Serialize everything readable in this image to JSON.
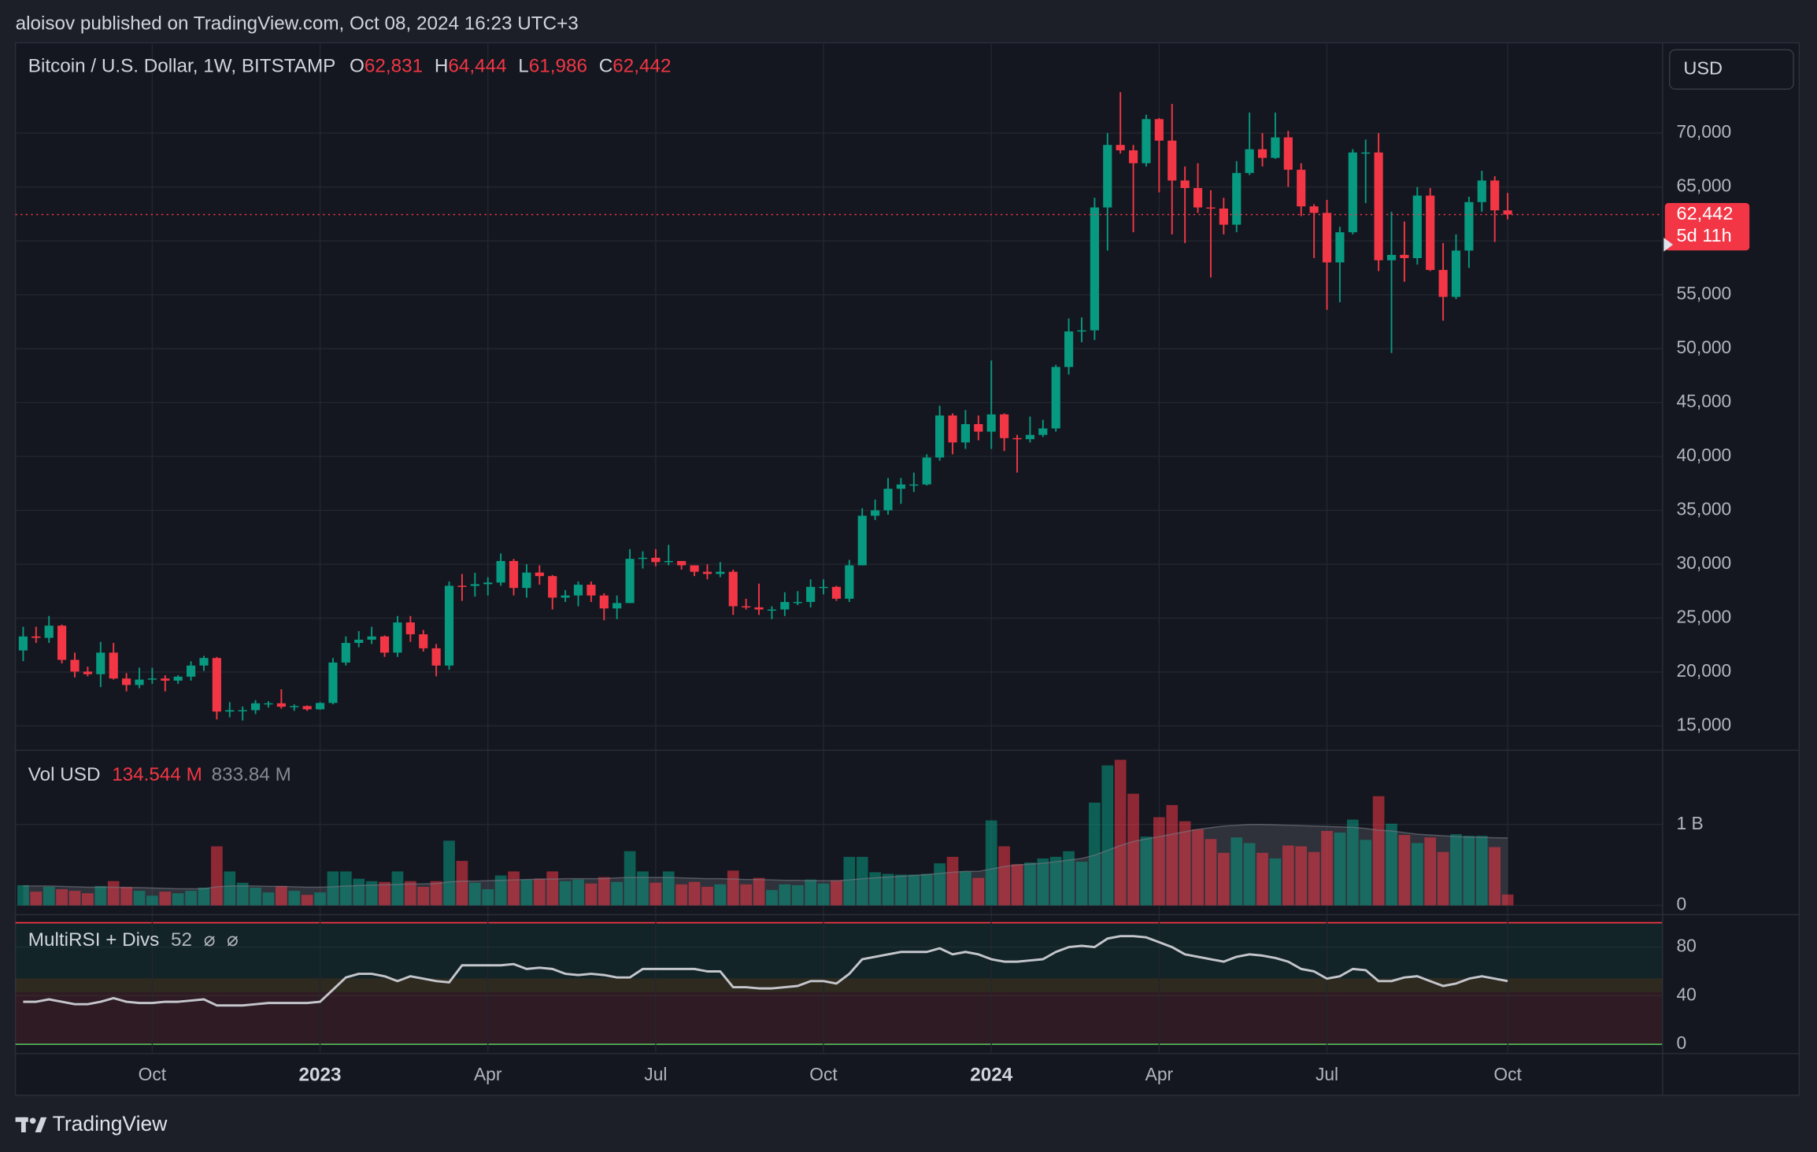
{
  "header": "aloisov published on TradingView.com, Oct 08, 2024 16:23 UTC+3",
  "footer": "TradingView",
  "chart_data": {
    "type": "candlestick",
    "title": "Bitcoin / U.S. Dollar, 1W, BITSTAMP",
    "currency": "USD",
    "last_ohlc": [
      {
        "letter": "O",
        "label": "62,831"
      },
      {
        "letter": "H",
        "label": "64,444"
      },
      {
        "letter": "L",
        "label": "61,986"
      },
      {
        "letter": "C",
        "label": "62,442"
      }
    ],
    "price_tag": {
      "label": "62,442",
      "countdown": "5d 11h"
    },
    "up_color": "#089981",
    "down_color": "#f23645",
    "open": [
      22000,
      23300,
      23170,
      24300,
      21130,
      20040,
      19800,
      21800,
      19400,
      18800,
      19300,
      19400,
      19200,
      19570,
      20600,
      21300,
      16330,
      16460,
      16460,
      17100,
      17100,
      16780,
      16840,
      16540,
      17130,
      20880,
      22700,
      23000,
      23300,
      21800,
      24600,
      23500,
      22200,
      20600,
      28000,
      27990,
      28150,
      28300,
      30300,
      27800,
      29230,
      28900,
      26900,
      27100,
      28100,
      27100,
      25900,
      26400,
      30500,
      30600,
      30200,
      30300,
      29900,
      29300,
      29100,
      29300,
      26100,
      26000,
      25800,
      25800,
      26500,
      26500,
      27900,
      27900,
      26800,
      29900,
      34500,
      35000,
      37000,
      37400,
      37400,
      39900,
      43800,
      41300,
      43000,
      42300,
      43900,
      41700,
      41600,
      42000,
      42600,
      48300,
      51600,
      51700,
      63100,
      68900,
      68400,
      67200,
      71300,
      69300,
      65600,
      64900,
      63100,
      63000,
      61500,
      66300,
      68500,
      67700,
      69600,
      66600,
      63200,
      62600,
      58000,
      60800,
      68200,
      68200,
      58200,
      58700,
      58400,
      64200,
      57300,
      54800,
      59100,
      63600,
      65600,
      62831
    ],
    "high": [
      24200,
      24200,
      25200,
      24400,
      21800,
      20500,
      22800,
      22700,
      19900,
      20400,
      20400,
      19700,
      19700,
      21000,
      21500,
      21400,
      17200,
      16800,
      17400,
      17300,
      18400,
      17000,
      16900,
      17200,
      21300,
      23300,
      23800,
      24200,
      23400,
      25200,
      25200,
      23900,
      22600,
      28400,
      29100,
      29200,
      28800,
      31000,
      30500,
      30000,
      29900,
      29000,
      27600,
      28400,
      28400,
      27300,
      27100,
      31400,
      31200,
      31400,
      31800,
      30300,
      29900,
      30000,
      30200,
      29500,
      26800,
      28200,
      26100,
      27400,
      27500,
      28600,
      28600,
      28000,
      30400,
      35200,
      36000,
      38000,
      38000,
      38500,
      40200,
      44700,
      44000,
      44300,
      43800,
      48900,
      44000,
      42000,
      43700,
      43400,
      48500,
      52800,
      52900,
      64000,
      70000,
      73800,
      68900,
      71700,
      71400,
      72700,
      66900,
      67200,
      64700,
      64000,
      67400,
      71900,
      70000,
      71900,
      70200,
      67200,
      63400,
      63800,
      61300,
      68500,
      69400,
      70000,
      62700,
      61800,
      65000,
      64900,
      59800,
      60600,
      64100,
      66500,
      66000,
      64444
    ],
    "low": [
      21000,
      22700,
      22700,
      20800,
      19500,
      19600,
      18600,
      19300,
      18200,
      18500,
      18900,
      18200,
      18900,
      19200,
      20100,
      15600,
      15800,
      15500,
      16100,
      16700,
      16600,
      16400,
      16400,
      16500,
      17000,
      20600,
      22300,
      22600,
      21400,
      21400,
      22800,
      21900,
      19600,
      20200,
      26600,
      27000,
      27100,
      28000,
      27100,
      26900,
      28100,
      25800,
      26500,
      26100,
      26500,
      24800,
      24900,
      26400,
      29600,
      29800,
      29900,
      29500,
      28900,
      28600,
      28800,
      25300,
      25800,
      25300,
      24900,
      25200,
      26200,
      26000,
      27200,
      26600,
      26500,
      29900,
      34100,
      34600,
      35600,
      36700,
      37300,
      39600,
      40200,
      40700,
      41500,
      40700,
      40500,
      38500,
      41300,
      41800,
      42300,
      47600,
      50600,
      50800,
      59100,
      68100,
      60800,
      66900,
      64500,
      60600,
      59800,
      62600,
      56600,
      60600,
      60800,
      66100,
      66900,
      67600,
      65000,
      62300,
      58400,
      53600,
      54300,
      60600,
      63500,
      57200,
      49600,
      56200,
      57800,
      57200,
      52600,
      54600,
      57500,
      62700,
      59900,
      61986
    ],
    "close": [
      23300,
      23170,
      24300,
      21130,
      20040,
      19800,
      21800,
      19400,
      18800,
      19300,
      19400,
      19200,
      19570,
      20600,
      21300,
      16330,
      16460,
      16460,
      17100,
      17100,
      16780,
      16840,
      16540,
      17130,
      20880,
      22700,
      23000,
      23300,
      21800,
      24600,
      23500,
      22200,
      20600,
      28000,
      27990,
      28150,
      28300,
      30300,
      27800,
      29230,
      28900,
      26900,
      27100,
      28100,
      27100,
      25900,
      26400,
      30500,
      30600,
      30200,
      30300,
      29900,
      29300,
      29100,
      29300,
      26100,
      26000,
      25800,
      25800,
      26500,
      26500,
      27900,
      27900,
      26800,
      29900,
      34500,
      35000,
      37000,
      37400,
      37400,
      39900,
      43800,
      41300,
      43000,
      42300,
      43900,
      41700,
      41600,
      42000,
      42600,
      48300,
      51600,
      51700,
      63100,
      68900,
      68400,
      67200,
      71300,
      69300,
      65600,
      64900,
      63100,
      63000,
      61500,
      66300,
      68500,
      67700,
      69600,
      66600,
      63200,
      62600,
      58000,
      60800,
      68200,
      68200,
      58200,
      58700,
      58400,
      64200,
      57300,
      54800,
      59100,
      63600,
      65600,
      62831,
      62442
    ],
    "xlim": [
      -0.6,
      127
    ],
    "xticks": [
      {
        "value": 10,
        "label": "Oct"
      },
      {
        "value": 23,
        "label": "2023",
        "bold": true
      },
      {
        "value": 36,
        "label": "Apr"
      },
      {
        "value": 49,
        "label": "Jul"
      },
      {
        "value": 62,
        "label": "Oct"
      },
      {
        "value": 75,
        "label": "2024",
        "bold": true
      },
      {
        "value": 88,
        "label": "Apr"
      },
      {
        "value": 101,
        "label": "Jul"
      },
      {
        "value": 115,
        "label": "Oct"
      }
    ],
    "ylim": [
      12850,
      78050
    ],
    "yticks": [
      {
        "value": 15000,
        "label": "15,000"
      },
      {
        "value": 20000,
        "label": "20,000"
      },
      {
        "value": 25000,
        "label": "25,000"
      },
      {
        "value": 30000,
        "label": "30,000"
      },
      {
        "value": 35000,
        "label": "35,000"
      },
      {
        "value": 40000,
        "label": "40,000"
      },
      {
        "value": 45000,
        "label": "45,000"
      },
      {
        "value": 50000,
        "label": "50,000"
      },
      {
        "value": 55000,
        "label": "55,000"
      },
      {
        "value": 60000,
        "label": "60,000"
      },
      {
        "value": 65000,
        "label": "65,000"
      },
      {
        "value": 70000,
        "label": "70,000"
      }
    ],
    "grid": true,
    "volume": {
      "title": "Vol USD",
      "values": [
        250000000.0,
        170000000.0,
        230000000.0,
        200000000.0,
        180000000.0,
        150000000.0,
        240000000.0,
        300000000.0,
        230000000.0,
        180000000.0,
        120000000.0,
        170000000.0,
        150000000.0,
        180000000.0,
        220000000.0,
        730000000.0,
        420000000.0,
        280000000.0,
        220000000.0,
        160000000.0,
        240000000.0,
        180000000.0,
        130000000.0,
        160000000.0,
        420000000.0,
        420000000.0,
        330000000.0,
        300000000.0,
        290000000.0,
        420000000.0,
        300000000.0,
        230000000.0,
        300000000.0,
        800000000.0,
        550000000.0,
        280000000.0,
        200000000.0,
        370000000.0,
        420000000.0,
        320000000.0,
        330000000.0,
        420000000.0,
        300000000.0,
        320000000.0,
        270000000.0,
        350000000.0,
        290000000.0,
        670000000.0,
        420000000.0,
        280000000.0,
        420000000.0,
        260000000.0,
        290000000.0,
        230000000.0,
        260000000.0,
        430000000.0,
        260000000.0,
        340000000.0,
        190000000.0,
        260000000.0,
        250000000.0,
        320000000.0,
        270000000.0,
        310000000.0,
        600000000.0,
        600000000.0,
        410000000.0,
        390000000.0,
        380000000.0,
        380000000.0,
        390000000.0,
        520000000.0,
        600000000.0,
        420000000.0,
        340000000.0,
        1050000000.0,
        730000000.0,
        510000000.0,
        530000000.0,
        580000000.0,
        600000000.0,
        670000000.0,
        540000000.0,
        1270000000.0,
        1730000000.0,
        1800000000.0,
        1380000000.0,
        850000000.0,
        1090000000.0,
        1240000000.0,
        1040000000.0,
        940000000.0,
        820000000.0,
        650000000.0,
        840000000.0,
        770000000.0,
        650000000.0,
        580000000.0,
        740000000.0,
        730000000.0,
        660000000.0,
        920000000.0,
        900000000.0,
        1060000000.0,
        810000000.0,
        1350000000.0,
        1010000000.0,
        870000000.0,
        770000000.0,
        840000000.0,
        660000000.0,
        880000000.0,
        860000000.0,
        860000000.0,
        720000000.0,
        134544000.0
      ],
      "last_label": "134.544 M",
      "ma": [
        240000000.0,
        240000000.0,
        240000000.0,
        235000000.0,
        230000000.0,
        225000000.0,
        225000000.0,
        225000000.0,
        220000000.0,
        220000000.0,
        215000000.0,
        210000000.0,
        205000000.0,
        205000000.0,
        205000000.0,
        230000000.0,
        240000000.0,
        240000000.0,
        240000000.0,
        235000000.0,
        235000000.0,
        230000000.0,
        225000000.0,
        225000000.0,
        230000000.0,
        240000000.0,
        245000000.0,
        250000000.0,
        255000000.0,
        260000000.0,
        265000000.0,
        265000000.0,
        270000000.0,
        290000000.0,
        300000000.0,
        300000000.0,
        305000000.0,
        310000000.0,
        315000000.0,
        320000000.0,
        325000000.0,
        325000000.0,
        330000000.0,
        330000000.0,
        330000000.0,
        330000000.0,
        340000000.0,
        345000000.0,
        345000000.0,
        345000000.0,
        345000000.0,
        340000000.0,
        335000000.0,
        330000000.0,
        330000000.0,
        325000000.0,
        320000000.0,
        320000000.0,
        315000000.0,
        310000000.0,
        310000000.0,
        305000000.0,
        305000000.0,
        305000000.0,
        315000000.0,
        330000000.0,
        340000000.0,
        350000000.0,
        360000000.0,
        370000000.0,
        380000000.0,
        395000000.0,
        410000000.0,
        420000000.0,
        420000000.0,
        450000000.0,
        480000000.0,
        500000000.0,
        510000000.0,
        520000000.0,
        540000000.0,
        560000000.0,
        580000000.0,
        620000000.0,
        680000000.0,
        740000000.0,
        790000000.0,
        820000000.0,
        850000000.0,
        880000000.0,
        910000000.0,
        940000000.0,
        960000000.0,
        980000000.0,
        990000000.0,
        1000000000.0,
        1000000000.0,
        995000000.0,
        990000000.0,
        985000000.0,
        980000000.0,
        975000000.0,
        970000000.0,
        965000000.0,
        950000000.0,
        930000000.0,
        920000000.0,
        900000000.0,
        880000000.0,
        870000000.0,
        860000000.0,
        850000000.0,
        845000000.0,
        840000000.0,
        836000000.0,
        833840000.0
      ],
      "ma_label": "833.84 M",
      "ma_color": "#787b86",
      "ylim": [
        0,
        1860000000.0
      ],
      "yticks": [
        0,
        {
          "value": 1000000000.0,
          "label": "1 B"
        }
      ]
    },
    "rsi": {
      "title": "MultiRSI + Divs",
      "symbols": [
        "⌀",
        "⌀"
      ],
      "color": "#c4c6cc",
      "values": [
        35,
        35,
        37,
        35,
        33,
        33,
        35,
        38,
        35,
        34,
        34,
        35,
        35,
        36,
        37,
        32,
        32,
        32,
        33,
        34,
        34,
        34,
        34,
        35,
        45,
        55,
        58,
        58,
        56,
        52,
        56,
        54,
        52,
        51,
        65,
        65,
        65,
        65,
        66,
        62,
        63,
        62,
        58,
        57,
        58,
        57,
        55,
        55,
        62,
        62,
        62,
        62,
        62,
        60,
        60,
        47,
        47,
        46,
        46,
        47,
        48,
        52,
        52,
        50,
        58,
        70,
        72,
        74,
        76,
        76,
        76,
        79,
        74,
        76,
        74,
        70,
        68,
        68,
        69,
        70,
        76,
        80,
        81,
        80,
        87,
        89,
        89,
        88,
        84,
        80,
        74,
        72,
        70,
        68,
        72,
        74,
        73,
        71,
        68,
        62,
        60,
        54,
        56,
        62,
        61,
        52,
        52,
        55,
        56,
        52,
        48,
        50,
        54,
        56,
        54,
        52
      ],
      "ylim": [
        0,
        100
      ],
      "yticks": [
        0,
        40,
        80
      ]
    }
  }
}
